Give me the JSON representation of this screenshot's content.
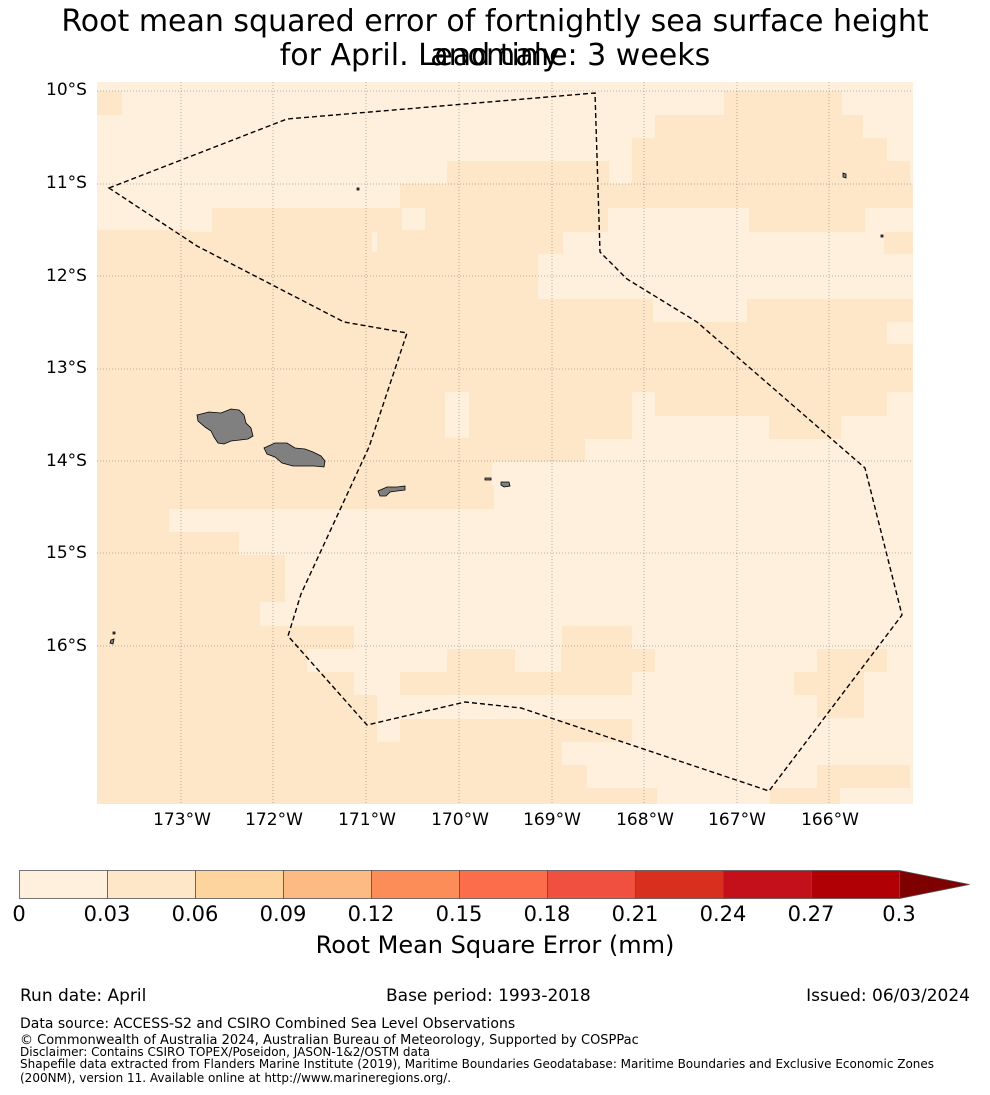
{
  "title_line1": "Root mean squared error of fortnightly sea surface height anomaly",
  "title_line2": "for April. Lead time: 3 weeks",
  "map": {
    "lon_range": [
      -173.9,
      -165.1
    ],
    "lat_range": [
      -17.8,
      -9.9
    ],
    "lat_ticks": [
      "10°S",
      "11°S",
      "12°S",
      "13°S",
      "14°S",
      "15°S",
      "16°S"
    ],
    "lon_ticks": [
      "173°W",
      "172°W",
      "171°W",
      "170°W",
      "169°W",
      "168°W",
      "167°W",
      "166°W"
    ],
    "colors": {
      "band_0_003": "#fff0dd",
      "band_003_006": "#fee6c8",
      "land": "#808080",
      "boundary": "#000000"
    }
  },
  "colorbar": {
    "ticks": [
      "0",
      "0.03",
      "0.06",
      "0.09",
      "0.12",
      "0.15",
      "0.18",
      "0.21",
      "0.24",
      "0.27",
      "0.3"
    ],
    "colors": [
      "#fff0dd",
      "#fee6c8",
      "#fdd49e",
      "#fdbb84",
      "#fc8d59",
      "#fc6d4c",
      "#ef5040",
      "#d7301f",
      "#c4101a",
      "#b00005"
    ],
    "extend_color": "#7f0000",
    "label": "Root Mean Square Error (mm)"
  },
  "footer": {
    "run_date": "Run date: April",
    "base_period": "Base period: 1993-2018",
    "issued": "Issued: 06/03/2024",
    "data_source": "Data source: ACCESS-S2 and CSIRO Combined Sea Level Observations",
    "copyright": "© Commonwealth of Australia 2024, Australian Bureau of Meteorology, Supported by COSPPac",
    "disclaimer": "Disclaimer: Contains CSIRO TOPEX/Poseidon, JASON-1&2/OSTM data",
    "shapefile_1": "Shapefile data extracted from Flanders Marine Institute (2019), Maritime Boundaries Geodatabase: Maritime Boundaries and Exclusive Economic Zones",
    "shapefile_2": "(200NM), version 11. Available online at http://www.marineregions.org/."
  }
}
